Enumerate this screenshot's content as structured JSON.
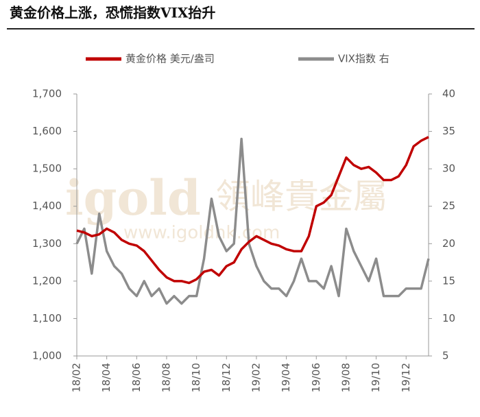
{
  "chart_data": {
    "type": "line",
    "title": "黄金价格上涨，恐慌指数VIX抬升",
    "watermark": [
      "igold",
      "領峰貴金屬",
      "www.igoldhk.com"
    ],
    "x": [
      0,
      0.5,
      1,
      1.5,
      2,
      2.5,
      3,
      3.5,
      4,
      4.5,
      5,
      5.5,
      6,
      6.5,
      7,
      7.5,
      8,
      8.5,
      9,
      9.5,
      10,
      10.5,
      11,
      11.5,
      12,
      12.5,
      13,
      13.5,
      14,
      14.5,
      15,
      15.5,
      16,
      16.5,
      17,
      17.5,
      18,
      18.5,
      19,
      19.5,
      20,
      20.5,
      21,
      21.5,
      22,
      22.5,
      23,
      23.5
    ],
    "xlim": [
      0,
      23.5
    ],
    "xticks": [
      {
        "value": 0,
        "label": "18/02"
      },
      {
        "value": 2,
        "label": "18/04"
      },
      {
        "value": 4,
        "label": "18/06"
      },
      {
        "value": 6,
        "label": "18/08"
      },
      {
        "value": 8,
        "label": "18/10"
      },
      {
        "value": 10,
        "label": "18/12"
      },
      {
        "value": 12,
        "label": "19/02"
      },
      {
        "value": 14,
        "label": "19/04"
      },
      {
        "value": 16,
        "label": "19/06"
      },
      {
        "value": 18,
        "label": "19/08"
      },
      {
        "value": 20,
        "label": "19/10"
      },
      {
        "value": 22,
        "label": "19/12"
      }
    ],
    "ylim": [
      1000,
      1700
    ],
    "yticks": [
      {
        "value": 1000,
        "label": "1,000"
      },
      {
        "value": 1100,
        "label": "1,100"
      },
      {
        "value": 1200,
        "label": "1,200"
      },
      {
        "value": 1300,
        "label": "1,300"
      },
      {
        "value": 1400,
        "label": "1,400"
      },
      {
        "value": 1500,
        "label": "1,500"
      },
      {
        "value": 1600,
        "label": "1,600"
      },
      {
        "value": 1700,
        "label": "1,700"
      }
    ],
    "y2lim": [
      5,
      40
    ],
    "y2ticks": [
      5,
      10,
      15,
      20,
      25,
      30,
      35,
      40
    ],
    "series": [
      {
        "name": "黄金价格 美元/盎司",
        "color": "#c00000",
        "axis": "y",
        "values": [
          1335,
          1330,
          1320,
          1325,
          1340,
          1330,
          1310,
          1300,
          1295,
          1280,
          1255,
          1230,
          1210,
          1200,
          1200,
          1195,
          1205,
          1225,
          1230,
          1215,
          1240,
          1250,
          1285,
          1305,
          1320,
          1310,
          1300,
          1295,
          1285,
          1280,
          1280,
          1320,
          1400,
          1410,
          1430,
          1480,
          1530,
          1510,
          1500,
          1505,
          1490,
          1470,
          1470,
          1480,
          1510,
          1560,
          1575,
          1585
        ]
      },
      {
        "name": "VIX指数 右",
        "color": "#8c8c8c",
        "axis": "y2",
        "values": [
          20,
          22,
          16,
          24,
          19,
          17,
          16,
          14,
          13,
          15,
          13,
          14,
          12,
          13,
          12,
          13,
          13,
          18,
          26,
          21,
          19,
          20,
          34,
          20,
          17,
          15,
          14,
          14,
          13,
          15,
          18,
          15,
          15,
          14,
          17,
          13,
          22,
          19,
          17,
          15,
          18,
          13,
          13,
          13,
          14,
          14,
          14,
          18
        ]
      }
    ]
  }
}
